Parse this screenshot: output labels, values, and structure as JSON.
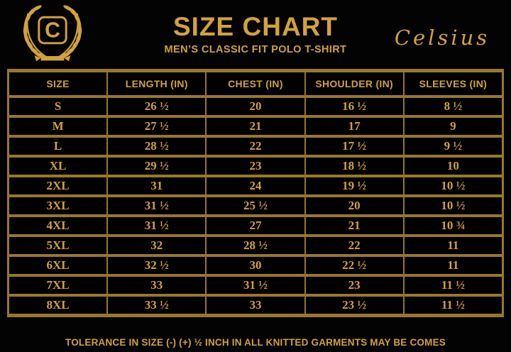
{
  "header": {
    "title": "SIZE CHART",
    "subtitle": "MEN’S CLASSIC FIT POLO T-SHIRT",
    "brand_script": "Celsius",
    "logo_letter": "C"
  },
  "table": {
    "columns": [
      "SIZE",
      "LENGTH (IN)",
      "CHEST (IN)",
      "SHOULDER (IN)",
      "SLEEVES (IN)"
    ],
    "rows": [
      {
        "size": "S",
        "length": "26 ½",
        "chest": "20",
        "shoulder": "16 ½",
        "sleeves": "8 ½"
      },
      {
        "size": "M",
        "length": "27 ½",
        "chest": "21",
        "shoulder": "17",
        "sleeves": "9"
      },
      {
        "size": "L",
        "length": "28 ½",
        "chest": "22",
        "shoulder": "17 ½",
        "sleeves": "9 ½"
      },
      {
        "size": "XL",
        "length": "29 ½",
        "chest": "23",
        "shoulder": "18 ½",
        "sleeves": "10"
      },
      {
        "size": "2XL",
        "length": "31",
        "chest": "24",
        "shoulder": "19 ½",
        "sleeves": "10 ½"
      },
      {
        "size": "3XL",
        "length": "31 ½",
        "chest": "25 ½",
        "shoulder": "20",
        "sleeves": "10 ½"
      },
      {
        "size": "4XL",
        "length": "31 ½",
        "chest": "27",
        "shoulder": "21",
        "sleeves": "10 ¾"
      },
      {
        "size": "5XL",
        "length": "32",
        "chest": "28 ½",
        "shoulder": "22",
        "sleeves": "11"
      },
      {
        "size": "6XL",
        "length": "32 ½",
        "chest": "30",
        "shoulder": "22 ½",
        "sleeves": "11"
      },
      {
        "size": "7XL",
        "length": "33",
        "chest": "31 ½",
        "shoulder": "23",
        "sleeves": "11 ½"
      },
      {
        "size": "8XL",
        "length": "33 ½",
        "chest": "33",
        "shoulder": "23 ½",
        "sleeves": "11 ½"
      }
    ]
  },
  "footer": {
    "note": "TOLERANCE IN SIZE (-) (+) ½ INCH IN ALL KNITTED GARMENTS MAY BE COMES"
  },
  "colors": {
    "gold": "#d2a23c",
    "border": "#97782a",
    "background": "#030303"
  }
}
